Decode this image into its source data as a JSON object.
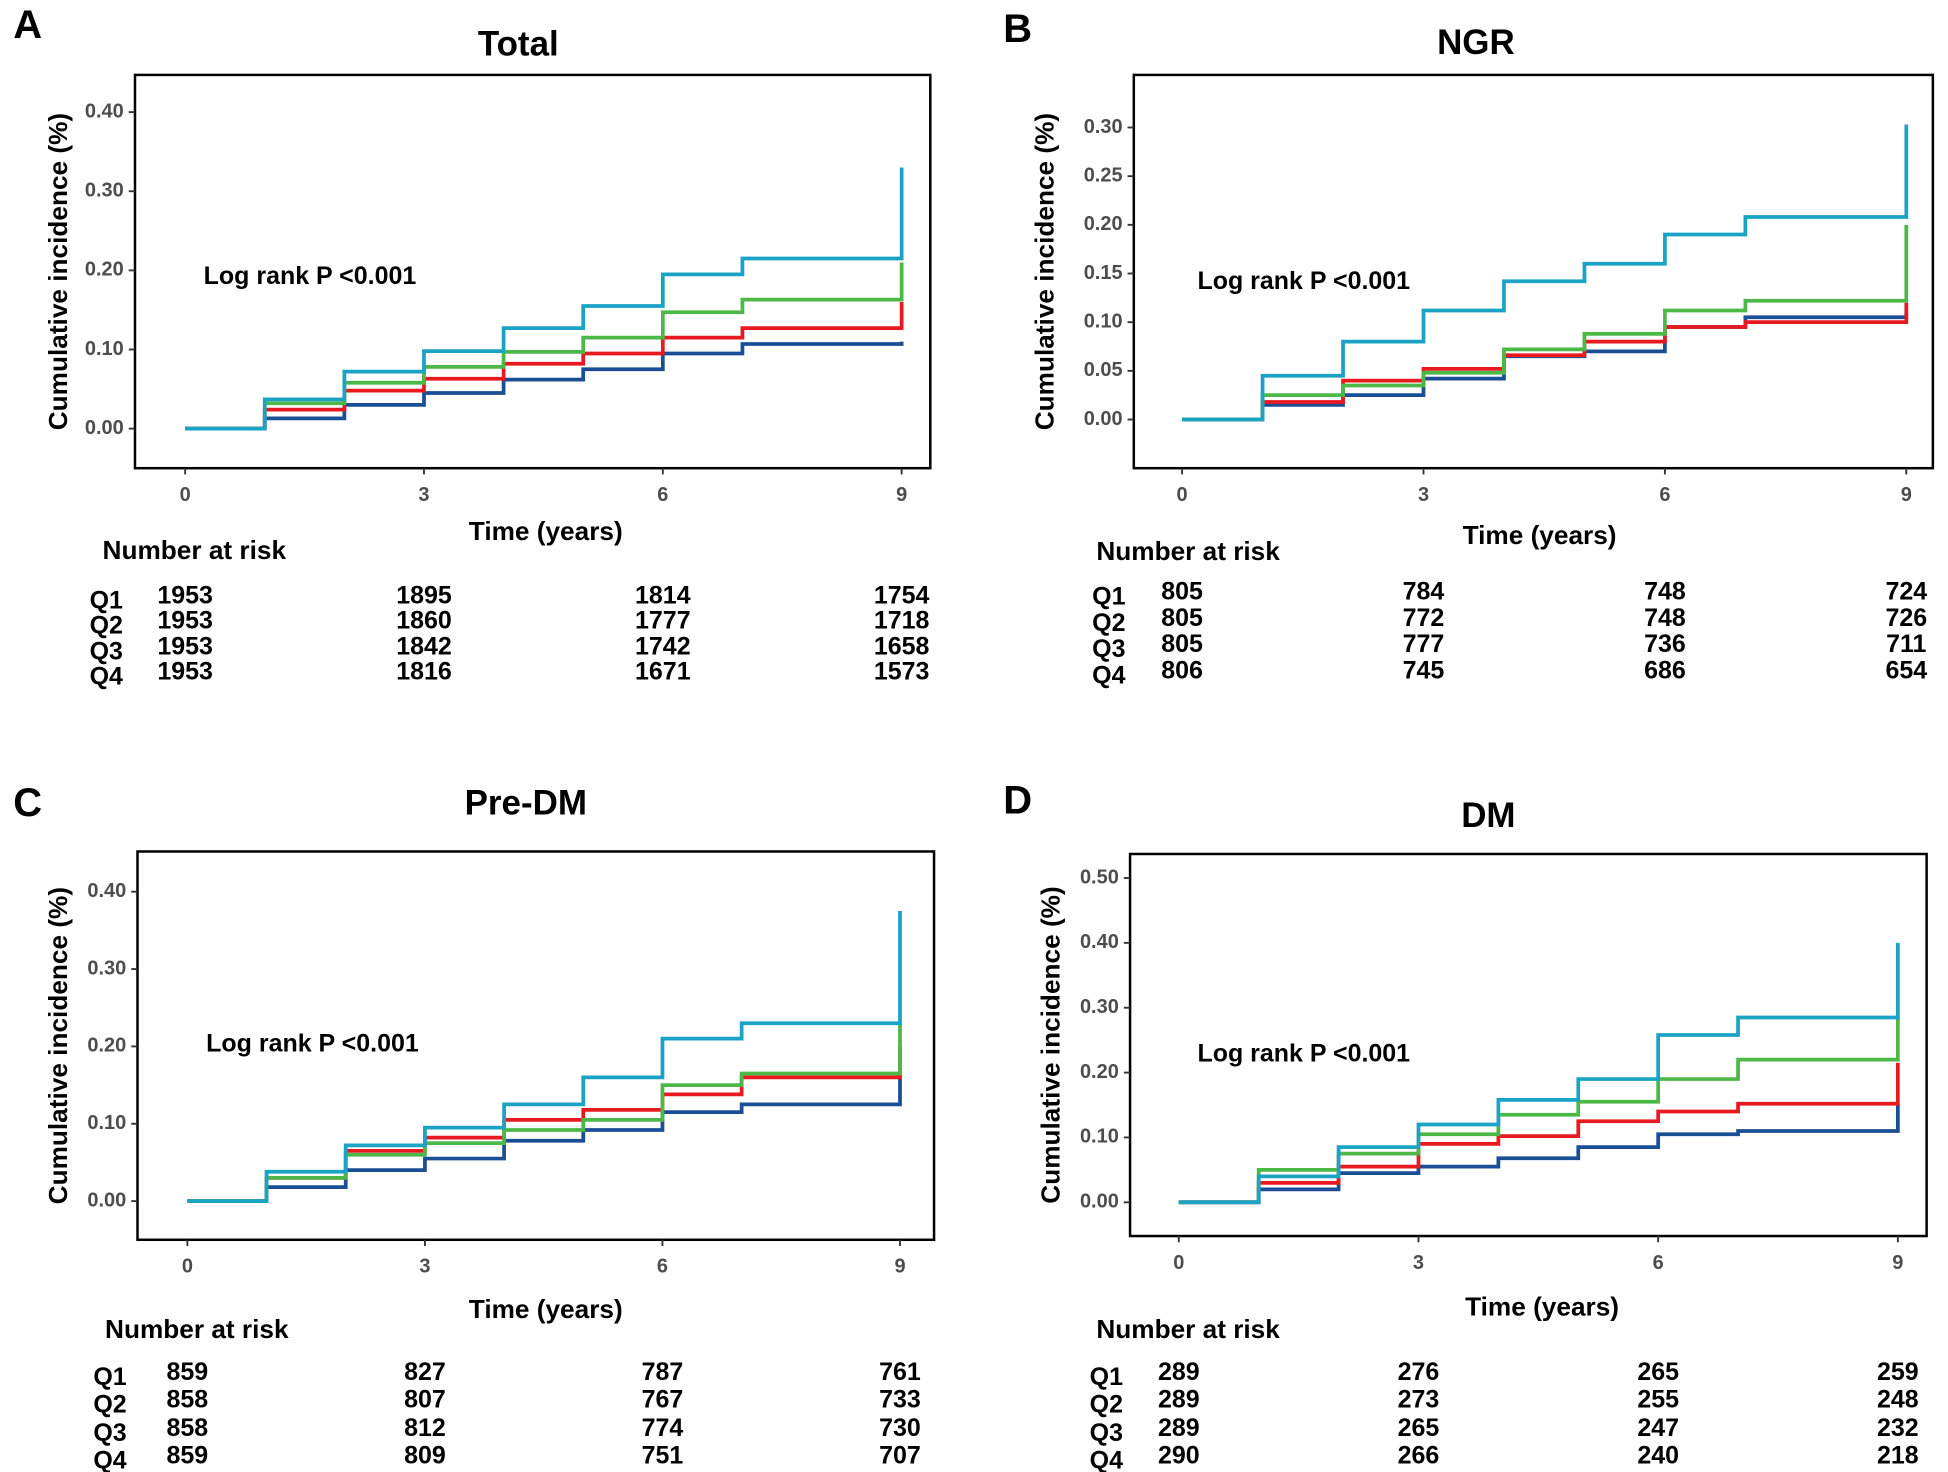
{
  "chart_data": [
    {
      "type": "step",
      "panel": "A",
      "title": "Total",
      "annotation": "Log rank P <0.001",
      "xlabel": "Time (years)",
      "ylabel": "Cumulative incidence (%)",
      "x": [
        0,
        1,
        2,
        3,
        4,
        5,
        6,
        7,
        8,
        9
      ],
      "xlim": [
        -0.63,
        9.36
      ],
      "xticks": [
        0,
        3,
        6,
        9
      ],
      "ylim": [
        -0.05,
        0.447
      ],
      "yticks": [
        {
          "value": 0,
          "label": "0.00"
        },
        {
          "value": 0.1,
          "label": "0.10"
        },
        {
          "value": 0.2,
          "label": "0.20"
        },
        {
          "value": 0.3,
          "label": "0.30"
        },
        {
          "value": 0.4,
          "label": "0.40"
        }
      ],
      "series": [
        {
          "name": "Q1",
          "color": "#1a4f95",
          "values": [
            0,
            0.013,
            0.03,
            0.045,
            0.062,
            0.075,
            0.095,
            0.107,
            0.107,
            0.11
          ]
        },
        {
          "name": "Q2",
          "color": "#e8191f",
          "values": [
            0,
            0.024,
            0.048,
            0.063,
            0.082,
            0.095,
            0.115,
            0.127,
            0.127,
            0.16
          ]
        },
        {
          "name": "Q3",
          "color": "#4cb848",
          "values": [
            0,
            0.032,
            0.058,
            0.078,
            0.097,
            0.115,
            0.147,
            0.163,
            0.163,
            0.21
          ]
        },
        {
          "name": "Q4",
          "color": "#1ba3c6",
          "values": [
            0,
            0.037,
            0.072,
            0.098,
            0.127,
            0.155,
            0.195,
            0.215,
            0.215,
            0.33
          ]
        }
      ],
      "risk_table": {
        "title": "Number at risk",
        "times": [
          0,
          3,
          6,
          9
        ],
        "rows": [
          [
            1953,
            1895,
            1814,
            1754
          ],
          [
            1953,
            1860,
            1777,
            1718
          ],
          [
            1953,
            1842,
            1742,
            1658
          ],
          [
            1953,
            1816,
            1671,
            1573
          ]
        ]
      }
    },
    {
      "type": "step",
      "panel": "B",
      "title": "NGR",
      "annotation": "Log rank P <0.001",
      "xlabel": "Time (years)",
      "ylabel": "Cumulative incidence (%)",
      "x": [
        0,
        1,
        2,
        3,
        4,
        5,
        6,
        7,
        8,
        9
      ],
      "xlim": [
        -0.6,
        9.33
      ],
      "xticks": [
        0,
        3,
        6,
        9
      ],
      "ylim": [
        -0.05,
        0.354
      ],
      "yticks": [
        {
          "value": 0,
          "label": "0.00"
        },
        {
          "value": 0.05,
          "label": "0.05"
        },
        {
          "value": 0.1,
          "label": "0.10"
        },
        {
          "value": 0.15,
          "label": "0.15"
        },
        {
          "value": 0.2,
          "label": "0.20"
        },
        {
          "value": 0.25,
          "label": "0.25"
        },
        {
          "value": 0.3,
          "label": "0.30"
        }
      ],
      "series": [
        {
          "name": "Q1",
          "color": "#1a4f95",
          "values": [
            0,
            0.015,
            0.025,
            0.042,
            0.065,
            0.07,
            0.095,
            0.105,
            0.105,
            0.11
          ]
        },
        {
          "name": "Q2",
          "color": "#e8191f",
          "values": [
            0,
            0.018,
            0.04,
            0.052,
            0.066,
            0.08,
            0.095,
            0.1,
            0.1,
            0.12
          ]
        },
        {
          "name": "Q3",
          "color": "#4cb848",
          "values": [
            0,
            0.025,
            0.035,
            0.048,
            0.072,
            0.088,
            0.112,
            0.122,
            0.122,
            0.2
          ]
        },
        {
          "name": "Q4",
          "color": "#1ba3c6",
          "values": [
            0,
            0.045,
            0.08,
            0.112,
            0.142,
            0.16,
            0.19,
            0.208,
            0.208,
            0.303
          ]
        }
      ],
      "risk_table": {
        "title": "Number at risk",
        "times": [
          0,
          3,
          6,
          9
        ],
        "rows": [
          [
            805,
            784,
            748,
            724
          ],
          [
            805,
            772,
            748,
            726
          ],
          [
            805,
            777,
            736,
            711
          ],
          [
            806,
            745,
            686,
            654
          ]
        ]
      }
    },
    {
      "type": "step",
      "panel": "C",
      "title": "Pre-DM",
      "annotation": "Log rank P <0.001",
      "xlabel": "Time (years)",
      "ylabel": "Cumulative incidence (%)",
      "x": [
        0,
        1,
        2,
        3,
        4,
        5,
        6,
        7,
        8,
        9
      ],
      "xlim": [
        -0.63,
        9.43
      ],
      "xticks": [
        0,
        3,
        6,
        9
      ],
      "ylim": [
        -0.05,
        0.452
      ],
      "yticks": [
        {
          "value": 0,
          "label": "0.00"
        },
        {
          "value": 0.1,
          "label": "0.10"
        },
        {
          "value": 0.2,
          "label": "0.20"
        },
        {
          "value": 0.3,
          "label": "0.30"
        },
        {
          "value": 0.4,
          "label": "0.40"
        }
      ],
      "series": [
        {
          "name": "Q1",
          "color": "#1a4f95",
          "values": [
            0,
            0.018,
            0.04,
            0.055,
            0.078,
            0.092,
            0.115,
            0.125,
            0.125,
            0.16
          ]
        },
        {
          "name": "Q2",
          "color": "#e8191f",
          "values": [
            0,
            0.03,
            0.065,
            0.082,
            0.105,
            0.118,
            0.138,
            0.16,
            0.16,
            0.2
          ]
        },
        {
          "name": "Q3",
          "color": "#4cb848",
          "values": [
            0,
            0.03,
            0.06,
            0.075,
            0.092,
            0.105,
            0.15,
            0.165,
            0.165,
            0.23
          ]
        },
        {
          "name": "Q4",
          "color": "#1ba3c6",
          "values": [
            0,
            0.038,
            0.072,
            0.095,
            0.125,
            0.16,
            0.21,
            0.23,
            0.23,
            0.375
          ]
        }
      ],
      "risk_table": {
        "title": "Number at risk",
        "times": [
          0,
          3,
          6,
          9
        ],
        "rows": [
          [
            859,
            827,
            787,
            761
          ],
          [
            858,
            807,
            767,
            733
          ],
          [
            858,
            812,
            774,
            730
          ],
          [
            859,
            809,
            751,
            707
          ]
        ]
      }
    },
    {
      "type": "step",
      "panel": "D",
      "title": "DM",
      "annotation": "Log rank P <0.001",
      "xlabel": "Time (years)",
      "ylabel": "Cumulative incidence (%)",
      "x": [
        0,
        1,
        2,
        3,
        4,
        5,
        6,
        7,
        8,
        9
      ],
      "xlim": [
        -0.61,
        9.36
      ],
      "xticks": [
        0,
        3,
        6,
        9
      ],
      "ylim": [
        -0.052,
        0.537
      ],
      "yticks": [
        {
          "value": 0,
          "label": "0.00"
        },
        {
          "value": 0.1,
          "label": "0.10"
        },
        {
          "value": 0.2,
          "label": "0.20"
        },
        {
          "value": 0.3,
          "label": "0.30"
        },
        {
          "value": 0.4,
          "label": "0.40"
        },
        {
          "value": 0.5,
          "label": "0.50"
        }
      ],
      "series": [
        {
          "name": "Q1",
          "color": "#1a4f95",
          "values": [
            0,
            0.02,
            0.045,
            0.055,
            0.068,
            0.085,
            0.105,
            0.11,
            0.11,
            0.15
          ]
        },
        {
          "name": "Q2",
          "color": "#e8191f",
          "values": [
            0,
            0.03,
            0.055,
            0.09,
            0.102,
            0.125,
            0.14,
            0.152,
            0.152,
            0.215
          ]
        },
        {
          "name": "Q3",
          "color": "#4cb848",
          "values": [
            0,
            0.05,
            0.075,
            0.105,
            0.135,
            0.155,
            0.19,
            0.22,
            0.22,
            0.285
          ]
        },
        {
          "name": "Q4",
          "color": "#1ba3c6",
          "values": [
            0,
            0.04,
            0.085,
            0.12,
            0.158,
            0.19,
            0.258,
            0.285,
            0.285,
            0.4
          ]
        }
      ],
      "risk_table": {
        "title": "Number at risk",
        "times": [
          0,
          3,
          6,
          9
        ],
        "rows": [
          [
            289,
            276,
            265,
            259
          ],
          [
            289,
            273,
            255,
            248
          ],
          [
            289,
            265,
            247,
            232
          ],
          [
            290,
            266,
            240,
            218
          ]
        ]
      }
    }
  ]
}
